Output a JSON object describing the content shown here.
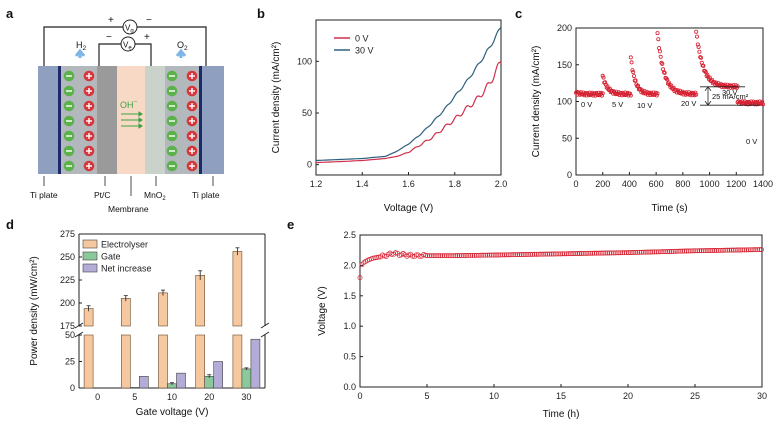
{
  "panels": {
    "a": {
      "letter": "a",
      "top_label_v": "V",
      "top_label_sub": "g",
      "top_plus": "+",
      "top_minus": "−",
      "inner_label_v": "V",
      "inner_label_sub": "e",
      "inner_minus": "−",
      "inner_plus": "+",
      "h2": "H",
      "h2_sub": "2",
      "o2": "O",
      "o2_sub": "2",
      "oh": "OH",
      "oh_sup": "−",
      "labels": [
        "Ti plate",
        "Pt/C",
        "Membrane",
        "MnO",
        "Ti plate"
      ],
      "mno2_sub": "2",
      "colors": {
        "ti": "#8f9fbf",
        "ptc": "#9a9a9a",
        "membrane": "#f8d9c6",
        "mno2": "#c9d2cb",
        "minus": "#5bb14a",
        "plus": "#d4373c"
      }
    },
    "b": {
      "letter": "b",
      "chart_ref": 0
    },
    "c": {
      "letter": "c",
      "chart_ref": 1,
      "annotations": [
        "0 V",
        "5 V",
        "10 V",
        "20 V",
        "30 V",
        "0 V"
      ],
      "delta_label": "25 mA/cm²"
    },
    "d": {
      "letter": "d",
      "chart_ref": 2
    },
    "e": {
      "letter": "e",
      "chart_ref": 3
    }
  },
  "chart_data": [
    {
      "type": "line",
      "title": "",
      "xlabel": "Voltage (V)",
      "ylabel": "Current density (mA/cm²)",
      "xlim": [
        1.2,
        2.0
      ],
      "ylim": [
        -10,
        140
      ],
      "xticks": [
        "1.2",
        "1.4",
        "1.6",
        "1.8",
        "2.0"
      ],
      "yticks": [
        "0",
        "50",
        "100"
      ],
      "legend": [
        "0 V",
        "30 V"
      ],
      "legend_position": "top-right",
      "series": [
        {
          "name": "0 V",
          "color": "#d0304a",
          "x": [
            1.2,
            1.3,
            1.4,
            1.5,
            1.55,
            1.6,
            1.65,
            1.7,
            1.75,
            1.8,
            1.85,
            1.9,
            1.95,
            2.0
          ],
          "y": [
            2,
            3,
            4,
            6,
            8,
            12,
            19,
            26,
            35,
            44,
            54,
            64,
            78,
            100
          ]
        },
        {
          "name": "30 V",
          "color": "#2d5f7e",
          "x": [
            1.2,
            1.3,
            1.4,
            1.5,
            1.55,
            1.6,
            1.65,
            1.7,
            1.75,
            1.8,
            1.85,
            1.9,
            1.95,
            2.0
          ],
          "y": [
            4,
            5,
            6,
            8,
            13,
            20,
            29,
            40,
            52,
            66,
            80,
            96,
            113,
            133
          ]
        }
      ]
    },
    {
      "type": "scatter",
      "title": "",
      "xlabel": "Time (s)",
      "ylabel": "Current density (mA/cm²)",
      "xlim": [
        0,
        1400
      ],
      "ylim": [
        0,
        200
      ],
      "xticks": [
        "0",
        "200",
        "400",
        "600",
        "800",
        "1000",
        "1200",
        "1400"
      ],
      "yticks": [
        "0",
        "50",
        "100",
        "150",
        "200"
      ],
      "color": "#d62030",
      "segments": [
        {
          "label": "0 V",
          "t0": 0,
          "t1": 200,
          "peak": 112,
          "base": 110
        },
        {
          "label": "5 V",
          "t0": 200,
          "t1": 410,
          "peak": 135,
          "base": 110
        },
        {
          "label": "10 V",
          "t0": 410,
          "t1": 610,
          "peak": 160,
          "base": 110
        },
        {
          "label": "20 V",
          "t0": 610,
          "t1": 900,
          "peak": 193,
          "base": 110
        },
        {
          "label": "30 V",
          "t0": 900,
          "t1": 1210,
          "peak": 195,
          "base": 120
        },
        {
          "label": "0 V",
          "t0": 1210,
          "t1": 1400,
          "peak": 99,
          "base": 98
        }
      ],
      "delta": 25
    },
    {
      "type": "bar",
      "title": "",
      "xlabel": "Gate voltage (V)",
      "ylabel": "Power density (mW/cm²)",
      "categories": [
        "0",
        "5",
        "10",
        "20",
        "30"
      ],
      "axis_break": true,
      "ylim_lower": [
        0,
        50
      ],
      "ylim_upper": [
        175,
        275
      ],
      "yticks_lower": [
        "0",
        "25",
        "50"
      ],
      "yticks_upper": [
        "175",
        "200",
        "225",
        "250",
        "275"
      ],
      "legend": [
        "Electrolyser",
        "Gate",
        "Net increase"
      ],
      "legend_position": "top-left",
      "series": [
        {
          "name": "Electrolyser",
          "color": "#f6c89f",
          "values": [
            194,
            205,
            211,
            230,
            256
          ],
          "errors": [
            3,
            3,
            3,
            5,
            4
          ]
        },
        {
          "name": "Gate",
          "color": "#8cc99a",
          "values": [
            0,
            0.5,
            4,
            11,
            18
          ],
          "errors": [
            0,
            0,
            1,
            1.5,
            1
          ]
        },
        {
          "name": "Net increase",
          "color": "#b3acd7",
          "values": [
            0,
            11,
            14,
            25,
            46
          ],
          "errors": [
            0,
            0,
            0,
            0,
            0
          ]
        }
      ]
    },
    {
      "type": "scatter",
      "title": "",
      "xlabel": "Time (h)",
      "ylabel": "Voltage (V)",
      "xlim": [
        0,
        30
      ],
      "ylim": [
        0,
        2.5
      ],
      "xticks": [
        "0",
        "5",
        "10",
        "15",
        "20",
        "25",
        "30"
      ],
      "yticks": [
        "0.0",
        "0.5",
        "1.0",
        "1.5",
        "2.0",
        "2.5"
      ],
      "color": "#d62030",
      "x": [
        0,
        0.1,
        0.3,
        0.6,
        1,
        1.5,
        2,
        2.5,
        3,
        4,
        5,
        7,
        10,
        15,
        20,
        25,
        30
      ],
      "y": [
        1.8,
        2.0,
        2.05,
        2.09,
        2.12,
        2.14,
        2.17,
        2.2,
        2.18,
        2.16,
        2.16,
        2.16,
        2.17,
        2.19,
        2.21,
        2.24,
        2.26
      ]
    }
  ]
}
